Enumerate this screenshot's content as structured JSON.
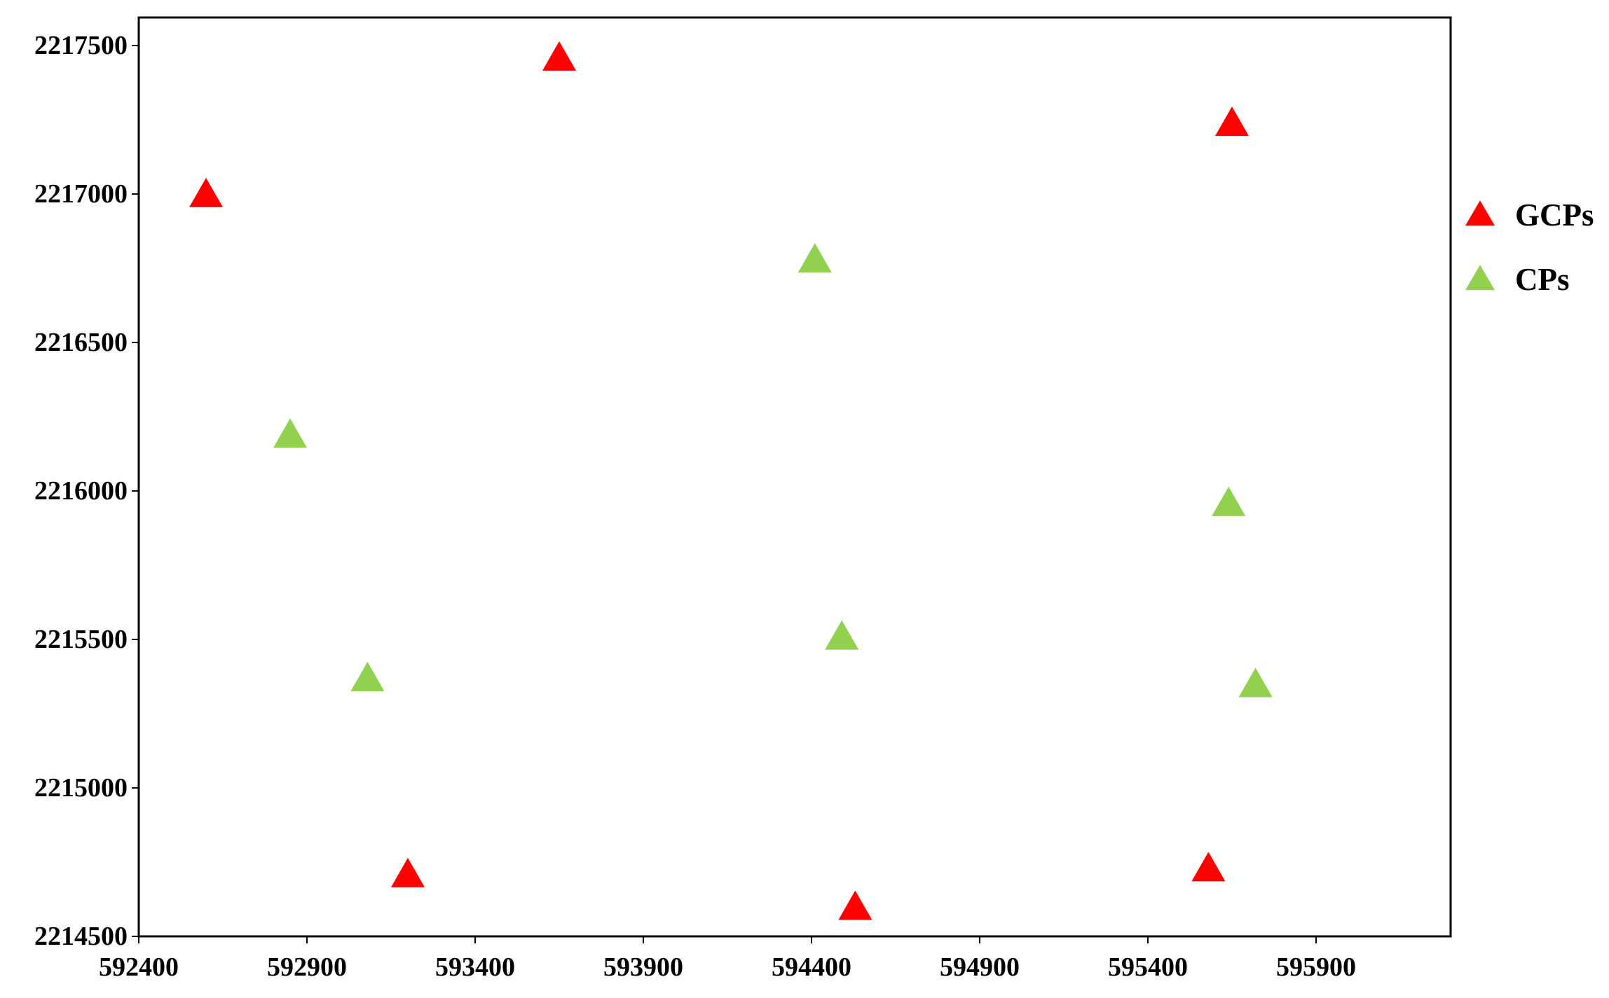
{
  "chart_data": {
    "type": "scatter",
    "title": "",
    "xlabel": "",
    "ylabel": "",
    "xlim": [
      592400,
      596300
    ],
    "ylim": [
      2214500,
      2217600
    ],
    "x_ticks": [
      592400,
      592900,
      593400,
      593900,
      594400,
      594900,
      595400,
      595900
    ],
    "y_ticks": [
      2214500,
      2215000,
      2215500,
      2216000,
      2216500,
      2217000,
      2217500
    ],
    "grid": false,
    "legend_position": "right",
    "marker": "triangle",
    "series": [
      {
        "name": "GCPs",
        "color": "#ff0000",
        "points": [
          {
            "x": 592600,
            "y": 2217000
          },
          {
            "x": 593650,
            "y": 2217460
          },
          {
            "x": 595650,
            "y": 2217240
          },
          {
            "x": 593200,
            "y": 2214710
          },
          {
            "x": 594530,
            "y": 2214600
          },
          {
            "x": 595580,
            "y": 2214730
          }
        ]
      },
      {
        "name": "CPs",
        "color": "#92d050",
        "points": [
          {
            "x": 594410,
            "y": 2216780
          },
          {
            "x": 592850,
            "y": 2216190
          },
          {
            "x": 595640,
            "y": 2215960
          },
          {
            "x": 594490,
            "y": 2215510
          },
          {
            "x": 593080,
            "y": 2215370
          },
          {
            "x": 595720,
            "y": 2215350
          }
        ]
      }
    ]
  }
}
